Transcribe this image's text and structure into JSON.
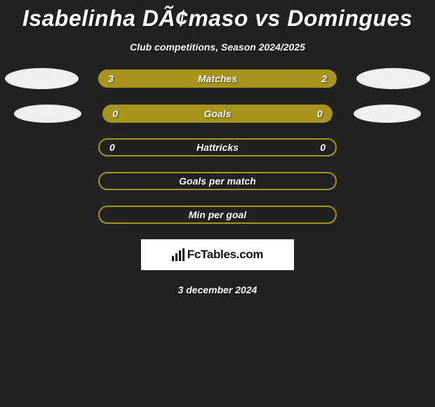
{
  "header": {
    "title": "Isabelinha DÃ¢maso vs Domingues",
    "subtitle": "Club competitions, Season 2024/2025"
  },
  "colors": {
    "bar_fill": "#a7941f",
    "bar_border": "#a7941f",
    "background": "#222222",
    "badge": "#efefef",
    "text": "#ffffff"
  },
  "rows": [
    {
      "id": "matches",
      "style": "solid",
      "label": "Matches",
      "left": "3",
      "right": "2",
      "badges": "large"
    },
    {
      "id": "goals",
      "style": "solid",
      "label": "Goals",
      "left": "0",
      "right": "0",
      "badges": "small"
    },
    {
      "id": "hattricks",
      "style": "outlined",
      "label": "Hattricks",
      "left": "0",
      "right": "0",
      "badges": "none"
    },
    {
      "id": "gpm",
      "style": "outlined",
      "label": "Goals per match",
      "left": "",
      "right": "",
      "badges": "none"
    },
    {
      "id": "mpg",
      "style": "outlined",
      "label": "Min per goal",
      "left": "",
      "right": "",
      "badges": "none"
    }
  ],
  "brand": {
    "text": "FcTables.com"
  },
  "date": "3 december 2024"
}
